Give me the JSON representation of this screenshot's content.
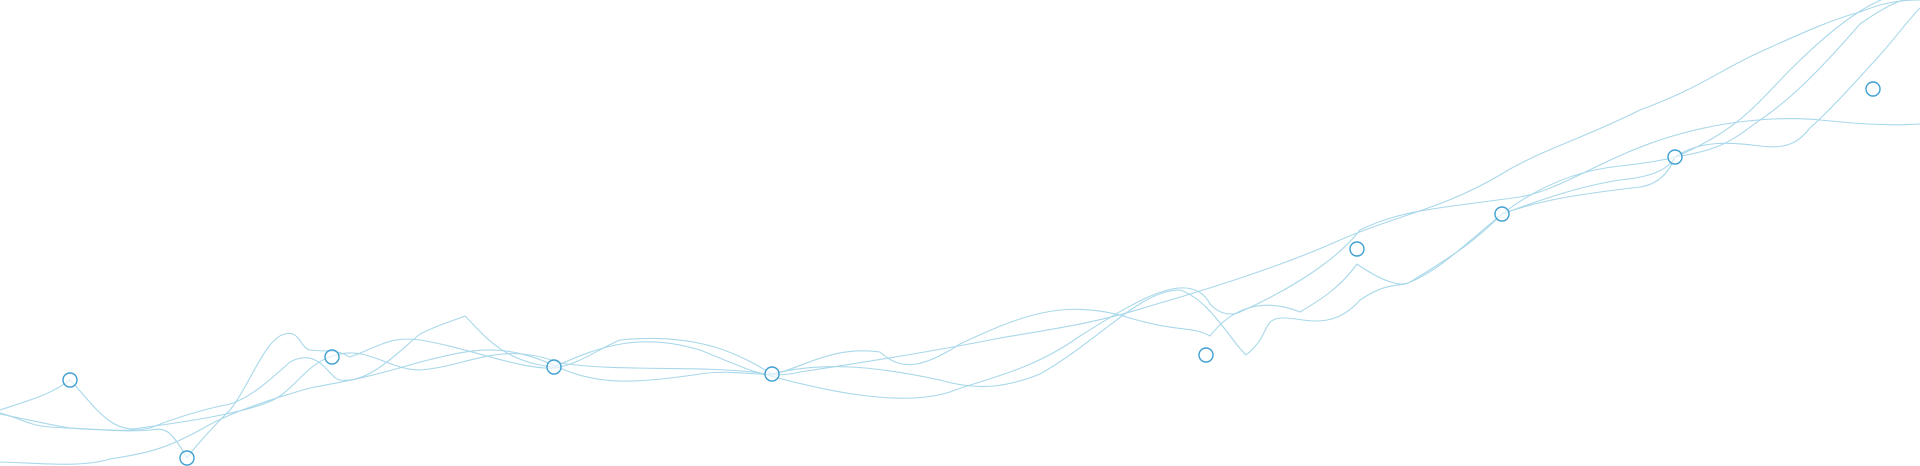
{
  "decoration": {
    "line_color": "#a9d8ea",
    "node_color": "#3f9fd1",
    "background": "#ffffff"
  }
}
